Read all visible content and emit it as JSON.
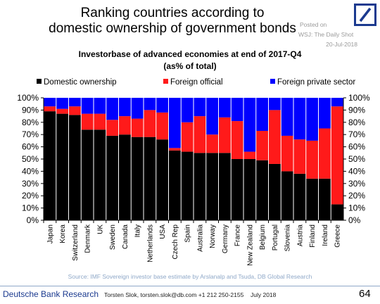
{
  "header": {
    "title_line1": "Ranking countries according to",
    "title_line2": "domestic ownership of government bonds",
    "posted_on": "Posted on",
    "posted_source": "WSJ: The Daily Shot",
    "posted_date": "20-Jul-2018",
    "logo": "deutsche-bank-logo"
  },
  "chart_data": {
    "type": "bar",
    "stacked": true,
    "title": "Investorbase of advanced economies at end of 2017-Q4",
    "subtitle": "(as% of total)",
    "categories": [
      "Japan",
      "Korea",
      "Switzerland",
      "Denmark",
      "UK",
      "Sweden",
      "Canada",
      "Italy",
      "Netherlands",
      "USA",
      "Czech Rep",
      "Spain",
      "Australia",
      "Norway",
      "Germany",
      "France",
      "New Zealand",
      "Belgium",
      "Portugal",
      "Slovenia",
      "Austria",
      "Finland",
      "Ireland",
      "Greece"
    ],
    "series": [
      {
        "name": "Domestic ownership",
        "color": "#000000",
        "values": [
          89,
          87,
          86,
          74,
          74,
          69,
          70,
          68,
          68,
          66,
          57,
          56,
          55,
          55,
          55,
          50,
          50,
          49,
          46,
          40,
          38,
          34,
          34,
          13
        ]
      },
      {
        "name": "Foreign official",
        "color": "#ff1a1a",
        "values": [
          4,
          4,
          7,
          13,
          13,
          13,
          15,
          15,
          22,
          22,
          2,
          24,
          30,
          15,
          29,
          31,
          6,
          24,
          44,
          29,
          28,
          31,
          41,
          80
        ]
      },
      {
        "name": "Foreign private sector",
        "color": "#0000ff",
        "values": [
          7,
          9,
          7,
          13,
          13,
          18,
          15,
          17,
          10,
          12,
          41,
          20,
          15,
          30,
          16,
          19,
          44,
          27,
          10,
          31,
          34,
          35,
          25,
          7
        ]
      }
    ],
    "ylim": [
      0,
      100
    ],
    "yticks": [
      "0%",
      "10%",
      "20%",
      "30%",
      "40%",
      "50%",
      "60%",
      "70%",
      "80%",
      "90%",
      "100%"
    ],
    "legend_position": "top",
    "grid": false,
    "source": "Source: IMF Sovereign investor base estimate by Arslanalp and Tsuda, DB Global Research"
  },
  "footer": {
    "brand": "Deutsche Bank Research",
    "author": "Torsten Slok, torsten.slok@db.com  +1 212 250-2155",
    "date": "July 2018",
    "page": "64"
  }
}
